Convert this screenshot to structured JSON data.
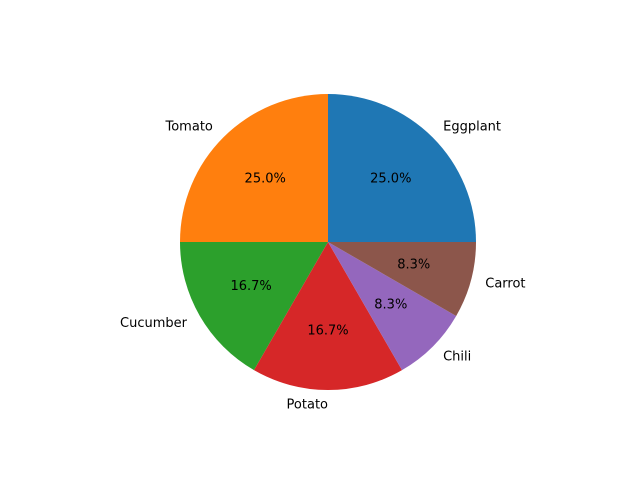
{
  "chart_data": {
    "type": "pie",
    "title": "",
    "categories": [
      "Eggplant",
      "Tomato",
      "Cucumber",
      "Potato",
      "Chili",
      "Carrot"
    ],
    "values": [
      3,
      3,
      2,
      2,
      1,
      1
    ],
    "percent_labels": [
      "25.0%",
      "25.0%",
      "16.7%",
      "16.7%",
      "8.3%",
      "8.3%"
    ],
    "colors": [
      "#1f77b4",
      "#ff7f0e",
      "#2ca02c",
      "#d62728",
      "#9467bd",
      "#8c564b"
    ],
    "start_angle_deg": 0,
    "direction": "counterclockwise",
    "legend": "none"
  }
}
